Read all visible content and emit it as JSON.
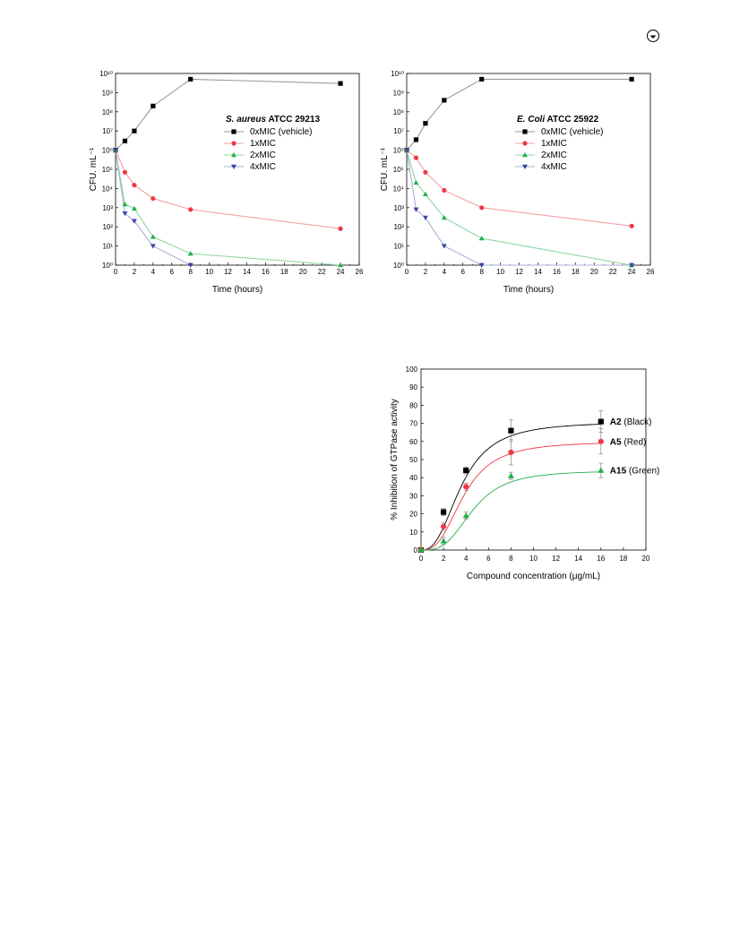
{
  "page": {
    "corner_icon": "circled-arrow-icon"
  },
  "chart_data": [
    {
      "type": "line",
      "yscale": "log",
      "title_parts": [
        {
          "text": "S. aureus",
          "style": "bold-italic"
        },
        {
          "text": " ATCC 29213",
          "style": "bold"
        }
      ],
      "xlabel": "Time (hours)",
      "ylabel": "CFU. mL⁻¹",
      "xlim": [
        0,
        26
      ],
      "ylim": [
        1,
        10000000000
      ],
      "xticks": [
        "0",
        "2",
        "4",
        "6",
        "8",
        "10",
        "12",
        "14",
        "16",
        "18",
        "20",
        "22",
        "24",
        "26"
      ],
      "yticks": [
        "10⁰",
        "10¹",
        "10²",
        "10³",
        "10⁴",
        "10⁵",
        "10⁶",
        "10⁷",
        "10⁸",
        "10⁹",
        "10¹⁰"
      ],
      "legend_position": "top-right",
      "series": [
        {
          "name": "0xMIC (vehicle)",
          "color": "#000000",
          "line": "#9a9a9a",
          "marker": "square",
          "x": [
            0,
            1,
            2,
            4,
            8,
            24
          ],
          "y": [
            1000000,
            3000000,
            10000000,
            200000000,
            5000000000,
            3000000000
          ]
        },
        {
          "name": "1xMIC",
          "color": "#ee3a45",
          "line": "#f2a0a5",
          "marker": "circle",
          "x": [
            0,
            1,
            2,
            4,
            8,
            24
          ],
          "y": [
            1000000,
            70000,
            15000,
            3000,
            800,
            80
          ]
        },
        {
          "name": "2xMIC",
          "color": "#22b04a",
          "line": "#8fd6a2",
          "marker": "triangle-up",
          "x": [
            0,
            1,
            2,
            4,
            8,
            24
          ],
          "y": [
            1000000,
            1500,
            900,
            30,
            4,
            1
          ]
        },
        {
          "name": "4xMIC",
          "color": "#3a46a8",
          "line": "#a9afd9",
          "marker": "triangle-down",
          "x": [
            0,
            1,
            2,
            4,
            8
          ],
          "y": [
            1000000,
            500,
            200,
            10,
            1
          ]
        }
      ]
    },
    {
      "type": "line",
      "yscale": "log",
      "title_parts": [
        {
          "text": "E. Coli",
          "style": "bold-italic"
        },
        {
          "text": " ATCC 25922",
          "style": "bold"
        }
      ],
      "xlabel": "Time (hours)",
      "ylabel": "CFU. mL⁻¹",
      "xlim": [
        0,
        26
      ],
      "ylim": [
        1,
        10000000000
      ],
      "xticks": [
        "0",
        "2",
        "4",
        "6",
        "8",
        "10",
        "12",
        "14",
        "16",
        "18",
        "20",
        "22",
        "24",
        "26"
      ],
      "yticks": [
        "10⁰",
        "10¹",
        "10²",
        "10³",
        "10⁴",
        "10⁵",
        "10⁶",
        "10⁷",
        "10⁸",
        "10⁹",
        "10¹⁰"
      ],
      "legend_position": "top-right",
      "series": [
        {
          "name": "0xMIC (vehicle)",
          "color": "#000000",
          "line": "#9a9a9a",
          "marker": "square",
          "x": [
            0,
            1,
            2,
            4,
            8,
            24
          ],
          "y": [
            1000000,
            3500000,
            25000000,
            400000000,
            5000000000,
            5000000000
          ]
        },
        {
          "name": "1xMIC",
          "color": "#ee3a45",
          "line": "#f2a0a5",
          "marker": "circle",
          "x": [
            0,
            1,
            2,
            4,
            8,
            24
          ],
          "y": [
            1000000,
            400000,
            70000,
            8000,
            1000,
            110
          ]
        },
        {
          "name": "2xMIC",
          "color": "#22b04a",
          "line": "#8fd6a2",
          "marker": "triangle-up",
          "x": [
            0,
            1,
            2,
            4,
            8,
            24
          ],
          "y": [
            1000000,
            20000,
            5000,
            300,
            25,
            1
          ]
        },
        {
          "name": "4xMIC",
          "color": "#3a46a8",
          "line": "#a9afd9",
          "marker": "triangle-down",
          "x": [
            0,
            1,
            2,
            4,
            8,
            24
          ],
          "y": [
            1000000,
            800,
            300,
            10,
            1,
            1
          ]
        }
      ]
    },
    {
      "type": "line",
      "xlabel": "Compound concentration (μg/mL)",
      "ylabel": "% Inhibition of GTPase activity",
      "xlim": [
        0,
        20
      ],
      "ylim": [
        0,
        100
      ],
      "xticks": [
        "0",
        "2",
        "4",
        "6",
        "8",
        "10",
        "12",
        "14",
        "16",
        "18",
        "20"
      ],
      "yticks": [
        "0",
        "10",
        "20",
        "30",
        "40",
        "50",
        "60",
        "70",
        "80",
        "90",
        "100"
      ],
      "series": [
        {
          "name_bold": "A2",
          "name_rest": " (Black)",
          "color": "#000000",
          "marker": "square",
          "x": [
            0,
            2,
            4,
            8,
            16
          ],
          "y": [
            0,
            21,
            44,
            66,
            71
          ],
          "err": [
            0,
            2,
            2,
            6,
            6
          ],
          "fit": {
            "top": 71,
            "ec50": 3.6,
            "hill": 2.6
          }
        },
        {
          "name_bold": "A5",
          "name_rest": " (Red)",
          "color": "#ee3a45",
          "marker": "circle",
          "x": [
            0,
            2,
            4,
            8,
            16
          ],
          "y": [
            0,
            13,
            35,
            54,
            60
          ],
          "err": [
            0,
            2,
            2,
            7,
            7
          ],
          "fit": {
            "top": 60,
            "ec50": 3.8,
            "hill": 2.8
          }
        },
        {
          "name_bold": "A15",
          "name_rest": " (Green)",
          "color": "#22b04a",
          "marker": "triangle-up",
          "x": [
            0,
            2,
            4,
            8,
            16
          ],
          "y": [
            0,
            5,
            19,
            41,
            44
          ],
          "err": [
            0,
            2,
            2,
            2,
            4
          ],
          "fit": {
            "top": 44,
            "ec50": 4.6,
            "hill": 3.2
          }
        }
      ]
    }
  ]
}
